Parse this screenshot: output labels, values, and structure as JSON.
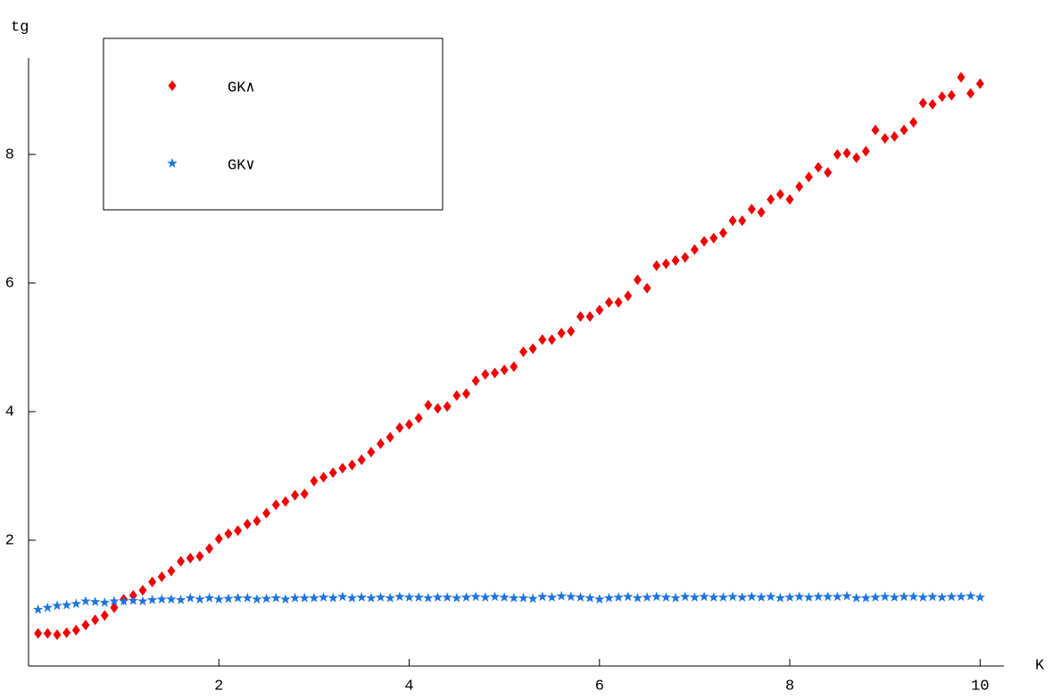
{
  "chart_data": {
    "type": "scatter",
    "ylabel": "tg",
    "xlabel": "K",
    "xlim": [
      0,
      10.25
    ],
    "ylim": [
      0,
      9.5
    ],
    "xticks": [
      2,
      4,
      6,
      8,
      10
    ],
    "yticks": [
      2,
      4,
      6,
      8
    ],
    "grid": false,
    "legend": "upper left",
    "x": [
      0.1,
      0.2,
      0.3,
      0.4,
      0.5,
      0.6,
      0.7,
      0.8,
      0.9,
      1.0,
      1.1,
      1.2,
      1.3,
      1.4,
      1.5,
      1.6,
      1.7,
      1.8,
      1.9,
      2.0,
      2.1,
      2.2,
      2.3,
      2.4,
      2.5,
      2.6,
      2.7,
      2.8,
      2.9,
      3.0,
      3.1,
      3.2,
      3.3,
      3.4,
      3.5,
      3.6,
      3.7,
      3.8,
      3.9,
      4.0,
      4.1,
      4.2,
      4.3,
      4.4,
      4.5,
      4.6,
      4.7,
      4.8,
      4.9,
      5.0,
      5.1,
      5.2,
      5.3,
      5.4,
      5.5,
      5.6,
      5.7,
      5.8,
      5.9,
      6.0,
      6.1,
      6.2,
      6.3,
      6.4,
      6.5,
      6.6,
      6.7,
      6.8,
      6.9,
      7.0,
      7.1,
      7.2,
      7.3,
      7.4,
      7.5,
      7.6,
      7.7,
      7.8,
      7.9,
      8.0,
      8.1,
      8.2,
      8.3,
      8.4,
      8.5,
      8.6,
      8.7,
      8.8,
      8.9,
      9.0,
      9.1,
      9.2,
      9.3,
      9.4,
      9.5,
      9.6,
      9.7,
      9.8,
      9.9,
      10.0
    ],
    "series": [
      {
        "name": "GK∧",
        "color": "#f00000",
        "marker": "diamond",
        "values": [
          0.55,
          0.55,
          0.53,
          0.56,
          0.6,
          0.68,
          0.76,
          0.83,
          0.95,
          1.08,
          1.14,
          1.22,
          1.35,
          1.43,
          1.52,
          1.67,
          1.72,
          1.75,
          1.87,
          2.02,
          2.1,
          2.15,
          2.25,
          2.3,
          2.42,
          2.55,
          2.6,
          2.7,
          2.72,
          2.92,
          2.98,
          3.05,
          3.12,
          3.17,
          3.25,
          3.37,
          3.5,
          3.6,
          3.75,
          3.8,
          3.9,
          4.1,
          4.05,
          4.08,
          4.25,
          4.28,
          4.48,
          4.58,
          4.6,
          4.65,
          4.7,
          4.93,
          4.98,
          5.12,
          5.12,
          5.22,
          5.25,
          5.48,
          5.48,
          5.58,
          5.7,
          5.7,
          5.8,
          6.05,
          5.92,
          6.27,
          6.3,
          6.35,
          6.4,
          6.52,
          6.65,
          6.7,
          6.78,
          6.97,
          6.97,
          7.15,
          7.1,
          7.3,
          7.38,
          7.3,
          7.5,
          7.65,
          7.8,
          7.72,
          8.0,
          8.02,
          7.95,
          8.05,
          8.38,
          8.25,
          8.28,
          8.38,
          8.5,
          8.8,
          8.78,
          8.9,
          8.92,
          9.2,
          8.95,
          9.1
        ]
      },
      {
        "name": "GK∨",
        "color": "#1e74e0",
        "marker": "star",
        "values": [
          0.92,
          0.95,
          0.98,
          0.99,
          1.01,
          1.05,
          1.04,
          1.03,
          1.05,
          1.05,
          1.06,
          1.05,
          1.07,
          1.08,
          1.08,
          1.07,
          1.1,
          1.08,
          1.1,
          1.08,
          1.09,
          1.1,
          1.1,
          1.08,
          1.09,
          1.1,
          1.08,
          1.1,
          1.1,
          1.1,
          1.11,
          1.1,
          1.12,
          1.1,
          1.11,
          1.1,
          1.11,
          1.1,
          1.12,
          1.11,
          1.11,
          1.1,
          1.11,
          1.11,
          1.1,
          1.11,
          1.12,
          1.11,
          1.12,
          1.11,
          1.1,
          1.1,
          1.09,
          1.12,
          1.11,
          1.13,
          1.12,
          1.11,
          1.1,
          1.08,
          1.1,
          1.11,
          1.12,
          1.1,
          1.11,
          1.12,
          1.11,
          1.1,
          1.12,
          1.11,
          1.12,
          1.11,
          1.11,
          1.12,
          1.11,
          1.12,
          1.11,
          1.12,
          1.1,
          1.11,
          1.12,
          1.11,
          1.12,
          1.12,
          1.12,
          1.13,
          1.1,
          1.1,
          1.11,
          1.12,
          1.11,
          1.12,
          1.12,
          1.11,
          1.12,
          1.11,
          1.12,
          1.12,
          1.13,
          1.11
        ]
      }
    ]
  }
}
